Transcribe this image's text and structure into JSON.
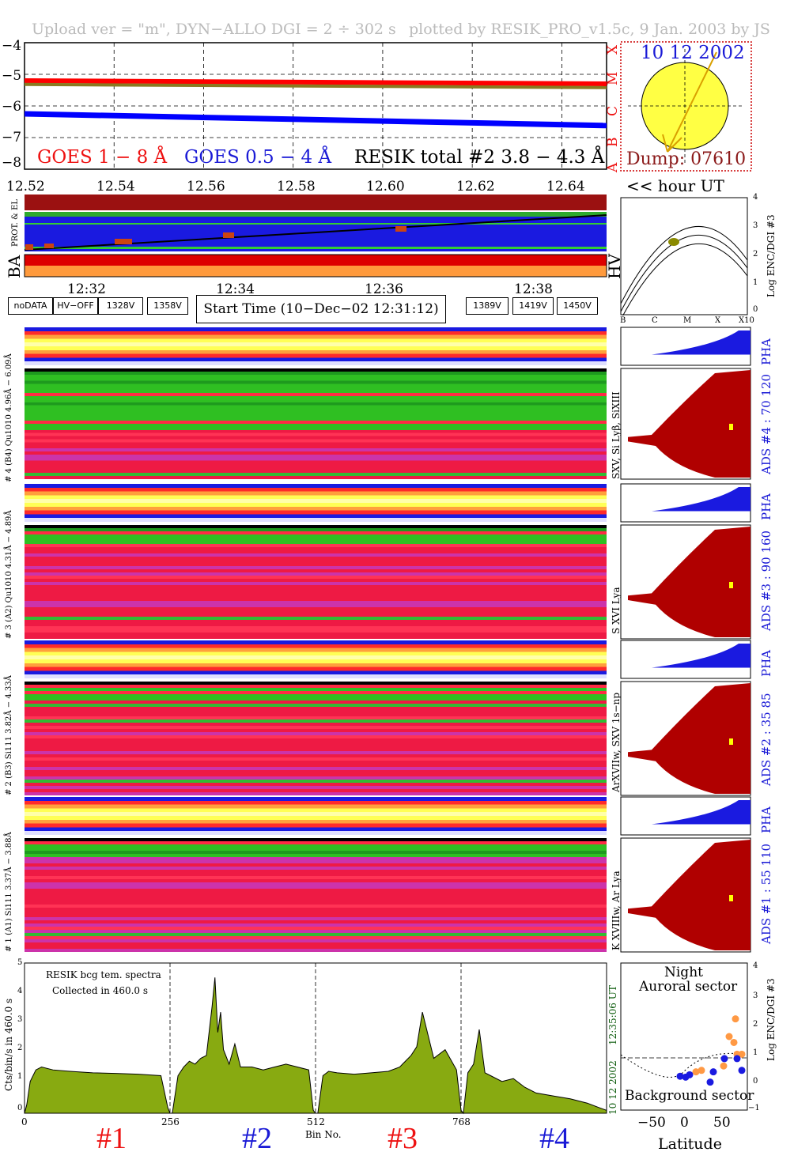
{
  "header": {
    "left": "Upload ver = \"m\", DYN−ALLO DGI =   2 ÷ 302 s",
    "right": "plotted by RESIK_PRO_v1.5c, 9 Jan. 2003 by JS"
  },
  "goes": {
    "yticks": [
      "−4",
      "−5",
      "−6",
      "−7",
      "−8"
    ],
    "class_labels": [
      "X",
      "M",
      "C",
      "B",
      "A"
    ],
    "legend_goes18": "GOES 1 − 8 Å",
    "legend_goes054": "GOES 0.5 − 4 Å",
    "legend_resik": "RESIK total #2  3.8 − 4.3 Å",
    "xticks": [
      "12.52",
      "12.54",
      "12.56",
      "12.58",
      "12.60",
      "12.62",
      "12.64"
    ],
    "x_unit": "<< hour UT"
  },
  "sun": {
    "date": "10 12 2002",
    "dump": "Dump: 07610"
  },
  "status": {
    "left_label_top": "PROT. & EL",
    "left_label": "BA",
    "right_label": "HV",
    "time_ticks": [
      "12:32",
      "12:34",
      "12:36",
      "12:38"
    ]
  },
  "legend": {
    "boxes": [
      {
        "label": "noDATA",
        "bg": "#888888",
        "fg": "#ffffff"
      },
      {
        "label": "HV−OFF",
        "bg": "#000000",
        "fg": "#ffffff"
      },
      {
        "label": "1328V",
        "bg": "#ffffc0",
        "fg": "#000000"
      },
      {
        "label": "1358V",
        "bg": "#1a1ae0",
        "fg": "#ffffff"
      },
      {
        "label": "1389V",
        "bg": "#ff9a3c",
        "fg": "#ffffff"
      },
      {
        "label": "1419V",
        "bg": "#ffff40",
        "fg": "#000000"
      },
      {
        "label": "1450V",
        "bg": "#cc0000",
        "fg": "#ffffff"
      }
    ],
    "start_time": "Start Time (10−Dec−02 12:31:12)"
  },
  "hv_plot": {
    "yticks": [
      "4",
      "3",
      "2",
      "1",
      "0"
    ],
    "ylabel": "Log ENC/DGI #3",
    "xticks": [
      "B",
      "C",
      "M",
      "X",
      "X10"
    ]
  },
  "channels": [
    {
      "id": 4,
      "left_label": "# 4 (B4) Qu1010 4.96Å − 6.09Å",
      "line_label": "SXV, Si Lyβ, SiXIII",
      "ads_label": "ADS #4 :   70 120",
      "pha": "PHA"
    },
    {
      "id": 3,
      "left_label": "# 3 (A2) Qu1010 4.31Å − 4.89Å",
      "line_label": "S XVI Lya",
      "ads_label": "ADS #3 :   90 160",
      "pha": "PHA"
    },
    {
      "id": 2,
      "left_label": "# 2 (B3) Si111 3.82Å − 4.33Å",
      "line_label": "ArXVIIw, SXV 1s−np",
      "ads_label": "ADS #2 :   35 85",
      "pha": "PHA"
    },
    {
      "id": 1,
      "left_label": "# 1 (A1) Si111 3.37Å − 3.88Å",
      "line_label": "K XVIIIw, Ar Lya",
      "ads_label": "ADS #1 :   55 110",
      "pha": "PHA"
    }
  ],
  "spectrum": {
    "yticks": [
      "5",
      "4",
      "3",
      "2",
      "1",
      "0"
    ],
    "ylabel": "Cts/bin/s in   460.0 s",
    "note1": "RESIK bcg tem. spectra",
    "note2": "Collected in   460.0 s",
    "xticks": [
      "0",
      "256",
      "512",
      "768"
    ],
    "xlabel": "Bin No.",
    "time": "12:35:06 UT",
    "date": "10 12 2002",
    "bin_labels": [
      "#1",
      "#2",
      "#3",
      "#4"
    ]
  },
  "orbit": {
    "title1": "Night",
    "title2": "Auroral sector",
    "bottom": "Background sector",
    "yticks": [
      "4",
      "3",
      "2",
      "1",
      "0",
      "−1"
    ],
    "ylabel": "Log ENC/DGI #3",
    "xticks": [
      "−50",
      "0",
      "50"
    ],
    "xlabel": "Latitude"
  },
  "chart_data": [
    {
      "type": "line",
      "title": "",
      "xlabel": "<< hour UT",
      "ylabel": "",
      "xlim": [
        12.52,
        12.65
      ],
      "ylim": [
        -8,
        -4
      ],
      "series": [
        {
          "name": "GOES 1 − 8 Å",
          "color": "#ff0000",
          "x": [
            12.52,
            12.65
          ],
          "y": [
            -5.2,
            -5.3
          ]
        },
        {
          "name": "GOES 0.5 − 4 Å",
          "color": "#0000ff",
          "x": [
            12.52,
            12.65
          ],
          "y": [
            -6.25,
            -6.62
          ]
        },
        {
          "name": "RESIK total #2  3.8 − 4.3 Å",
          "color": "#8a7a20",
          "x": [
            12.52,
            12.65
          ],
          "y": [
            -5.32,
            -5.42
          ]
        }
      ]
    },
    {
      "type": "area",
      "title": "",
      "xlabel": "Bin No.",
      "ylabel": "Cts/bin/s in   460.0 s",
      "xlim": [
        0,
        1024
      ],
      "ylim": [
        0,
        5.2
      ],
      "series": [
        {
          "name": "",
          "color": "#88aa11",
          "x": [
            0,
            4,
            10,
            20,
            30,
            50,
            80,
            120,
            160,
            200,
            240,
            252,
            256,
            260,
            270,
            280,
            290,
            300,
            310,
            320,
            330,
            335,
            340,
            345,
            350,
            360,
            370,
            380,
            400,
            420,
            440,
            460,
            480,
            500,
            508,
            512,
            516,
            525,
            535,
            550,
            580,
            610,
            640,
            660,
            670,
            680,
            690,
            700,
            720,
            740,
            760,
            768,
            772,
            780,
            790,
            800,
            810,
            820,
            840,
            860,
            880,
            900,
            930,
            960,
            990,
            1010,
            1024
          ],
          "y": [
            0,
            0.3,
            1.1,
            1.5,
            1.6,
            1.5,
            1.45,
            1.4,
            1.38,
            1.35,
            1.3,
            0.2,
            0,
            0,
            1.3,
            1.6,
            1.8,
            1.7,
            1.9,
            2.0,
            3.7,
            4.7,
            2.8,
            3.5,
            2.2,
            1.7,
            2.4,
            1.6,
            1.6,
            1.5,
            1.6,
            1.7,
            1.6,
            1.5,
            0.1,
            0,
            0,
            1.3,
            1.45,
            1.4,
            1.35,
            1.4,
            1.45,
            1.6,
            1.8,
            2.0,
            2.3,
            3.5,
            1.9,
            2.2,
            1.5,
            0.1,
            0,
            1.4,
            1.7,
            2.9,
            1.4,
            1.3,
            1.1,
            1.2,
            0.9,
            0.7,
            0.6,
            0.5,
            0.35,
            0.2,
            0.1
          ]
        }
      ]
    },
    {
      "type": "scatter",
      "title": "Night",
      "xlabel": "Latitude",
      "ylabel": "Log ENC/DGI #3",
      "xlim": [
        -75,
        85
      ],
      "ylim": [
        -1,
        4
      ],
      "series": [
        {
          "name": "",
          "color": "#ff9944",
          "x": [
            20,
            27,
            55,
            62,
            68,
            70,
            72,
            78
          ],
          "y": [
            0.3,
            0.35,
            0.5,
            1.5,
            1.3,
            2.1,
            0.9,
            0.9
          ]
        },
        {
          "name": "",
          "color": "#1a1ae0",
          "x": [
            0,
            7,
            12,
            38,
            42,
            56,
            72,
            78
          ],
          "y": [
            0.15,
            0.12,
            0.2,
            -0.05,
            0.3,
            0.75,
            0.75,
            0.35
          ]
        }
      ]
    }
  ]
}
